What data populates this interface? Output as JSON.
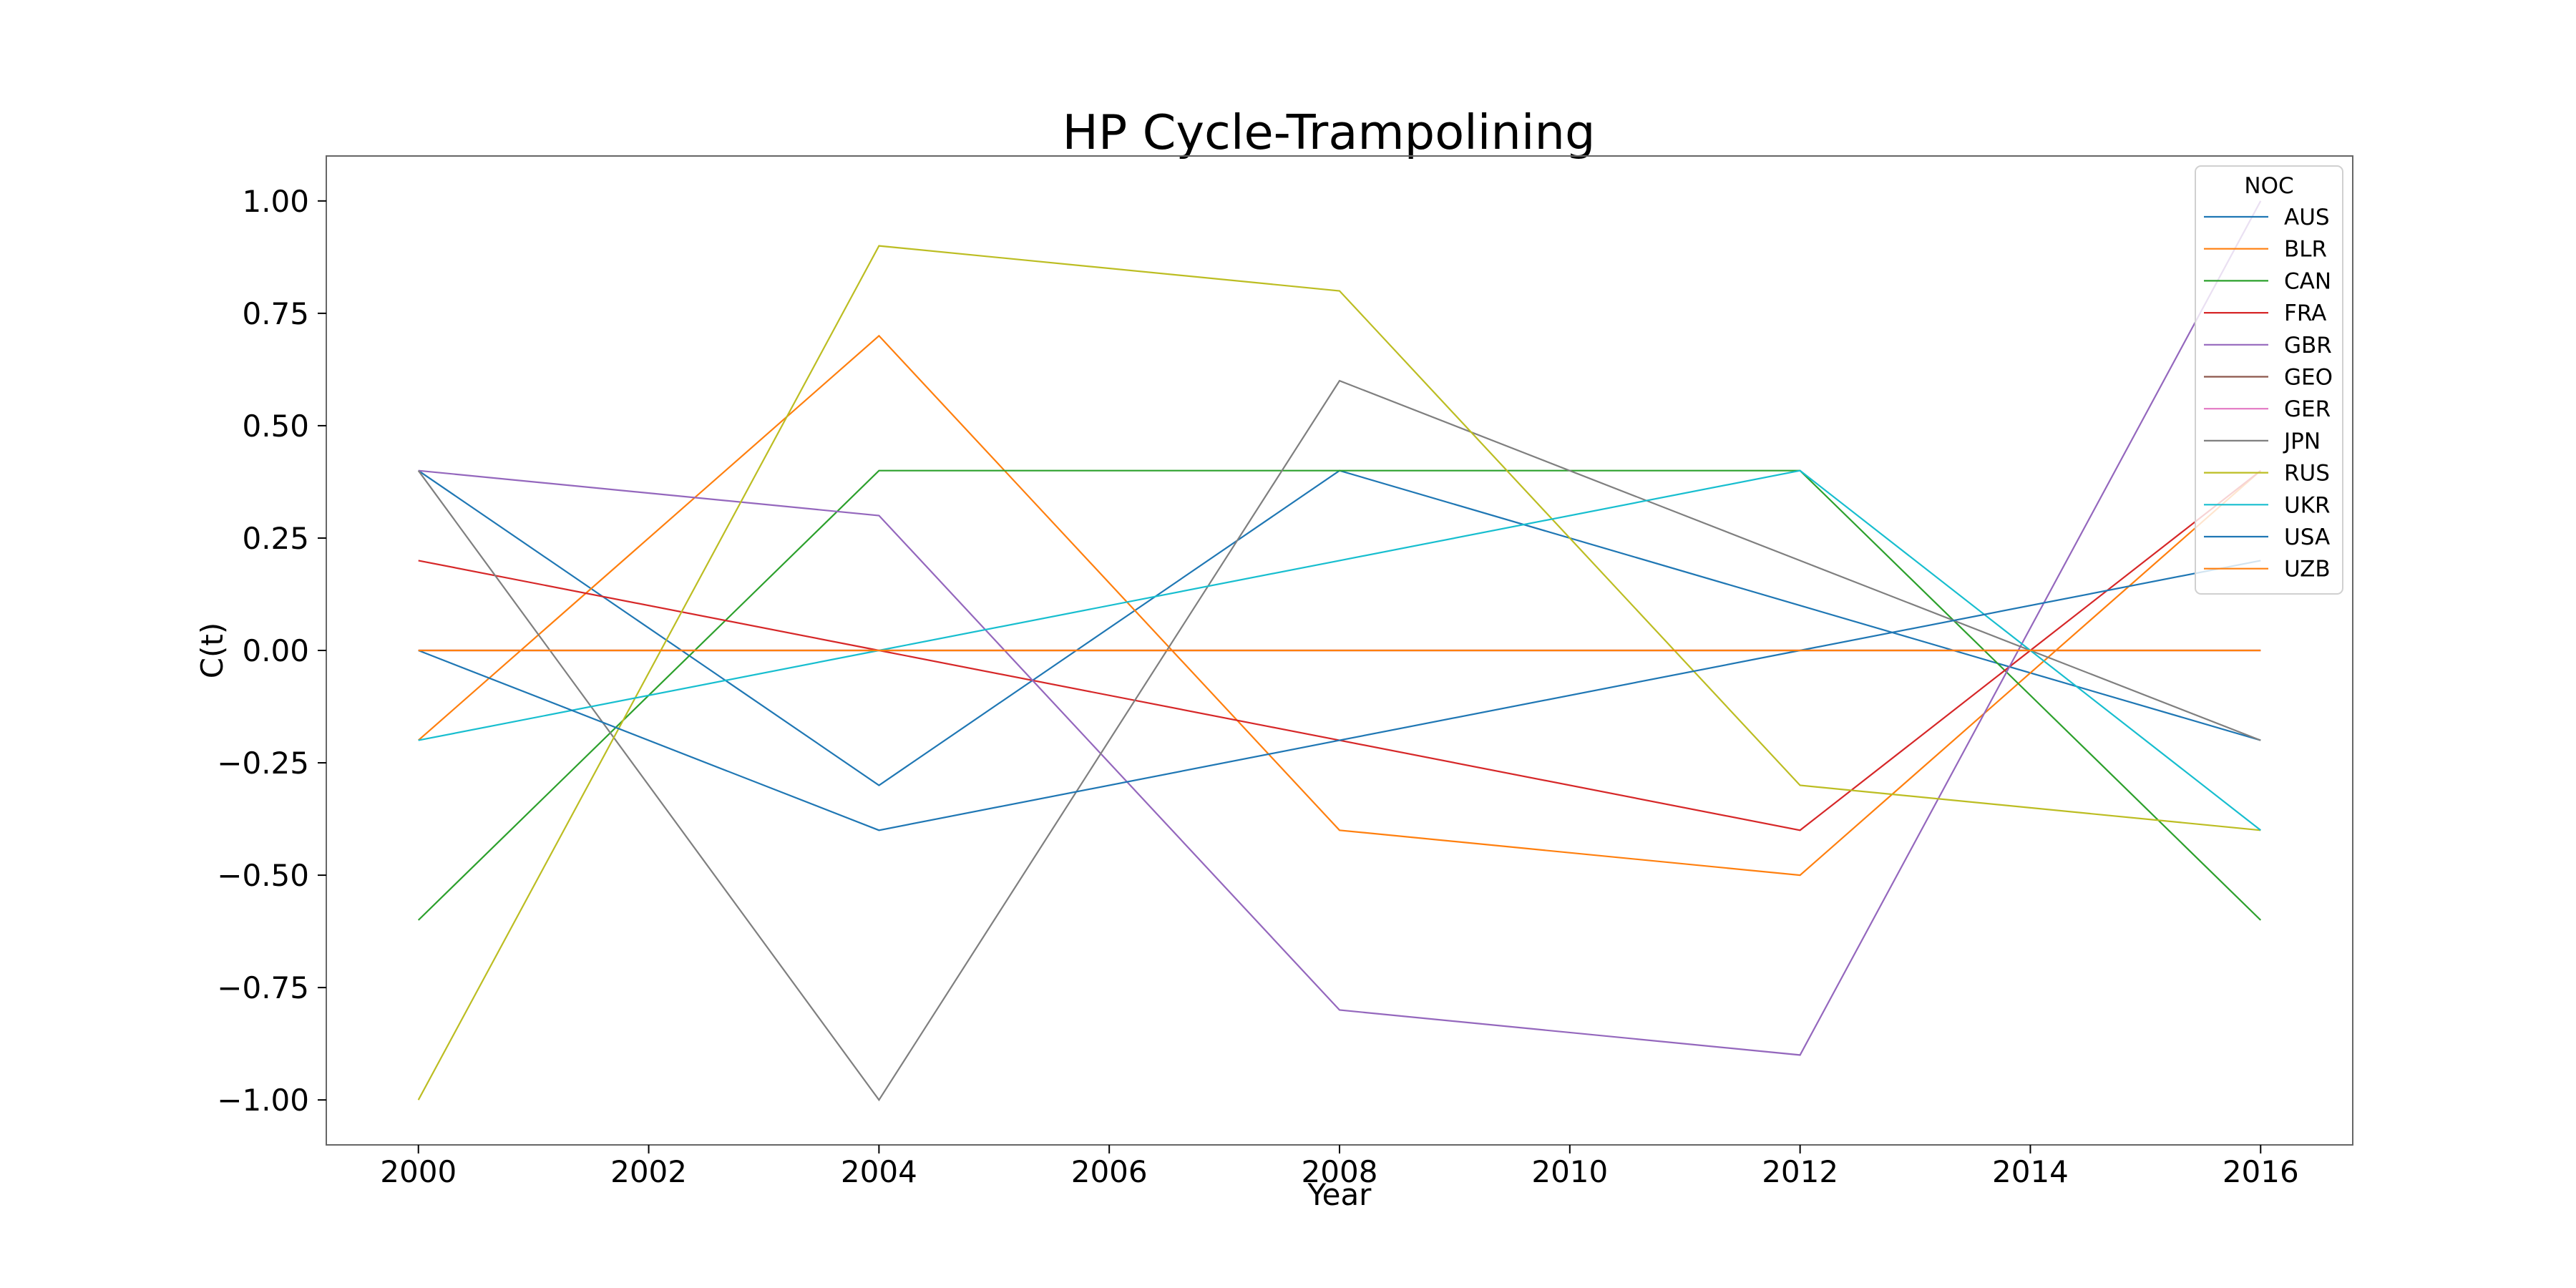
{
  "chart_data": {
    "type": "line",
    "title": "HP Cycle-Trampolining",
    "xlabel": "Year",
    "ylabel": "C(t)",
    "x": [
      2000,
      2004,
      2008,
      2012,
      2016
    ],
    "xlim": [
      1999.2,
      2016.8
    ],
    "ylim": [
      -1.1,
      1.1
    ],
    "xticks": [
      2000,
      2002,
      2004,
      2006,
      2008,
      2010,
      2012,
      2014,
      2016
    ],
    "xtick_labels": [
      "2000",
      "2002",
      "2004",
      "2006",
      "2008",
      "2010",
      "2012",
      "2014",
      "2016"
    ],
    "yticks": [
      1.0,
      0.75,
      0.5,
      0.25,
      0.0,
      -0.25,
      -0.5,
      -0.75,
      -1.0
    ],
    "ytick_labels": [
      "1.00",
      "0.75",
      "0.50",
      "0.25",
      "0.00",
      "−0.25",
      "−0.50",
      "−0.75",
      "−1.00"
    ],
    "grid": false,
    "legend_title": "NOC",
    "legend_position": "top-right",
    "series": [
      {
        "name": "AUS",
        "color": "#1f77b4",
        "values": [
          0.4,
          -0.3,
          0.4,
          0.1,
          -0.2
        ]
      },
      {
        "name": "BLR",
        "color": "#ff7f0e",
        "values": [
          -0.2,
          0.7,
          -0.4,
          -0.5,
          0.4
        ]
      },
      {
        "name": "CAN",
        "color": "#2ca02c",
        "values": [
          -0.6,
          0.4,
          0.4,
          0.4,
          -0.6
        ]
      },
      {
        "name": "FRA",
        "color": "#d62728",
        "values": [
          0.2,
          0.0,
          -0.2,
          -0.4,
          0.4
        ]
      },
      {
        "name": "GBR",
        "color": "#9467bd",
        "values": [
          0.4,
          0.3,
          -0.8,
          -0.9,
          1.0
        ]
      },
      {
        "name": "GEO",
        "color": "#8c564b",
        "values": [
          0.0,
          0.0,
          0.0,
          0.0,
          0.0
        ]
      },
      {
        "name": "GER",
        "color": "#e377c2",
        "values": [
          0.0,
          0.0,
          0.0,
          0.0,
          0.0
        ]
      },
      {
        "name": "JPN",
        "color": "#7f7f7f",
        "values": [
          0.4,
          -1.0,
          0.6,
          0.2,
          -0.2
        ]
      },
      {
        "name": "RUS",
        "color": "#bcbd22",
        "values": [
          -1.0,
          0.9,
          0.8,
          -0.3,
          -0.4
        ]
      },
      {
        "name": "UKR",
        "color": "#17becf",
        "values": [
          -0.2,
          0.0,
          0.2,
          0.4,
          -0.4
        ]
      },
      {
        "name": "USA",
        "color": "#1f77b4",
        "values": [
          0.0,
          -0.4,
          -0.2,
          0.0,
          0.2
        ]
      },
      {
        "name": "UZB",
        "color": "#ff7f0e",
        "values": [
          0.0,
          0.0,
          0.0,
          0.0,
          0.0
        ]
      }
    ]
  }
}
